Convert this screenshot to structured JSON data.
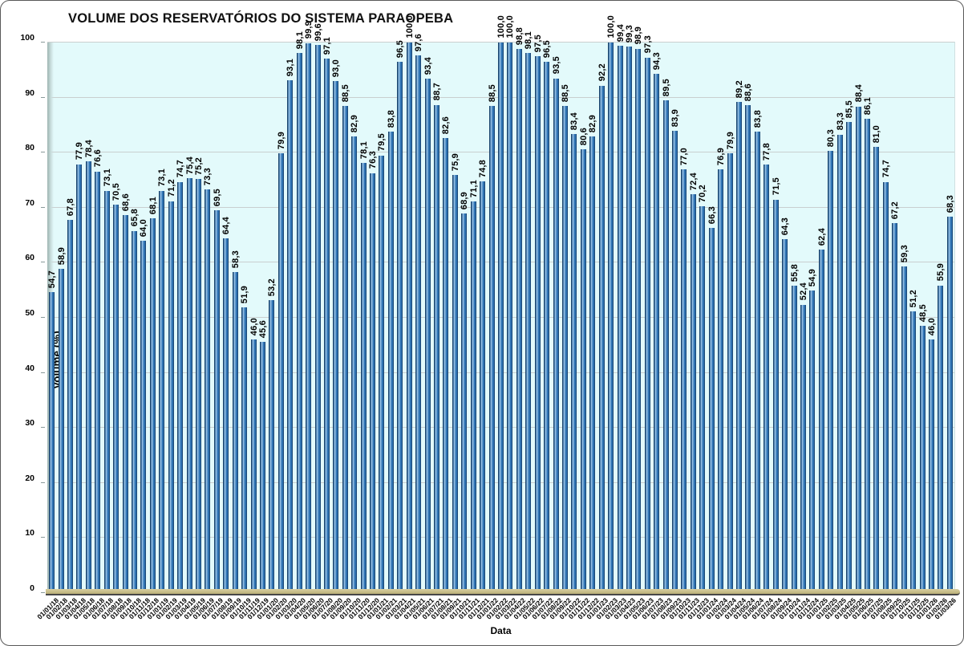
{
  "chart_data": {
    "type": "bar",
    "title": "VOLUME DOS RESERVATÓRIOS DO SISTEMA PARAOPEBA",
    "xlabel": "Data",
    "ylabel": "Volume (%)",
    "ylim": [
      0,
      100
    ],
    "ytick_step": 10,
    "grid": true,
    "legend": "none",
    "decimal_separator": ",",
    "categories": [
      "01/01/18",
      "01/02/18",
      "01/03/18",
      "01/04/18",
      "01/05/18",
      "01/06/18",
      "01/07/18",
      "01/08/18",
      "01/09/18",
      "01/10/18",
      "01/11/18",
      "01/12/18",
      "01/01/19",
      "01/02/19",
      "01/03/19",
      "01/04/19",
      "01/05/19",
      "01/06/19",
      "01/07/19",
      "01/08/19",
      "01/09/19",
      "01/10/19",
      "01/11/19",
      "01/12/19",
      "01/01/20",
      "01/02/20",
      "01/03/20",
      "01/04/20",
      "01/05/20",
      "01/06/20",
      "01/07/20",
      "01/08/20",
      "01/09/20",
      "01/10/20",
      "01/11/20",
      "01/12/20",
      "01/01/21",
      "01/02/21",
      "01/03/21",
      "01/04/21",
      "01/05/21",
      "01/06/21",
      "01/07/21",
      "01/08/21",
      "01/09/21",
      "01/10/21",
      "01/11/21",
      "01/12/21",
      "01/01/22",
      "01/02/22",
      "01/03/22",
      "01/04/22",
      "01/05/22",
      "01/06/22",
      "01/07/22",
      "01/08/22",
      "01/09/22",
      "01/10/22",
      "01/11/22",
      "01/12/22",
      "01/01/23",
      "01/02/23",
      "01/03/23",
      "01/04/23",
      "01/05/23",
      "01/06/23",
      "01/07/23",
      "01/08/23",
      "01/09/23",
      "01/10/23",
      "01/11/23",
      "01/12/23",
      "01/01/24",
      "01/02/24",
      "01/03/24",
      "01/04/24",
      "01/05/24",
      "01/06/24",
      "01/07/24",
      "01/08/24",
      "01/09/24",
      "01/10/24",
      "01/11/24",
      "01/12/24",
      "01/01/25",
      "01/02/25",
      "01/03/25",
      "01/04/25",
      "01/05/25",
      "01/06/25",
      "01/07/25",
      "01/08/25",
      "01/09/25",
      "01/10/25",
      "01/11/25",
      "01/12/25",
      "01/01/26",
      "01/02/26",
      "01/03/26"
    ],
    "values": [
      54.7,
      58.9,
      67.8,
      77.9,
      78.4,
      76.6,
      73.1,
      70.5,
      68.6,
      65.8,
      64.0,
      68.1,
      73.1,
      71.2,
      74.7,
      75.4,
      75.2,
      73.3,
      69.5,
      64.4,
      58.3,
      51.9,
      46.0,
      45.6,
      53.2,
      79.9,
      93.1,
      98.1,
      99.9,
      99.6,
      97.1,
      93.0,
      88.5,
      82.9,
      78.1,
      76.3,
      79.5,
      83.8,
      96.5,
      100.0,
      97.6,
      93.4,
      88.7,
      82.6,
      75.9,
      68.9,
      71.1,
      74.8,
      88.5,
      100.0,
      100.0,
      98.8,
      98.1,
      97.5,
      96.5,
      93.5,
      88.5,
      83.4,
      80.6,
      82.9,
      92.2,
      100.0,
      99.4,
      99.3,
      98.9,
      97.3,
      94.3,
      89.5,
      83.9,
      77.0,
      72.4,
      70.2,
      66.3,
      76.9,
      79.9,
      89.2,
      88.6,
      83.8,
      77.8,
      71.5,
      64.3,
      55.8,
      52.4,
      54.9,
      62.4,
      80.3,
      83.3,
      85.5,
      88.4,
      86.1,
      81.0,
      74.7,
      67.2,
      59.3,
      51.2,
      48.5,
      46.0,
      55.9,
      68.3
    ],
    "colors": {
      "bar_main": "#2E74B5",
      "bar_edge": "#14365C",
      "bar_highlight": "#9CC3E5",
      "plot_background": "#E3FAFB",
      "gridline": "#C9CFCF",
      "baseline": "#C9BF8C",
      "text": "#000000"
    }
  }
}
